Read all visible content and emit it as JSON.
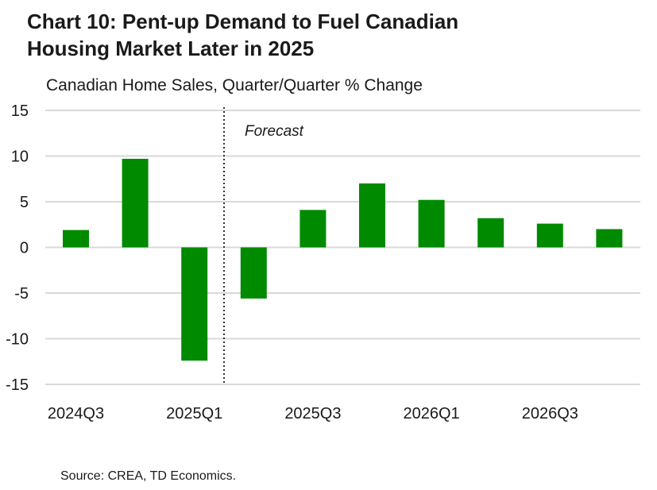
{
  "title_line1": "Chart 10: Pent-up Demand to Fuel Canadian",
  "title_line2": "Housing Market Later in 2025",
  "subtitle": "Canadian Home Sales, Quarter/Quarter % Change",
  "source": "Source: CREA, TD Economics.",
  "colors": {
    "bar": "#008a00",
    "grid": "#d9d9d9",
    "divider": "#333333"
  },
  "chart_data": {
    "type": "bar",
    "categories": [
      "2024Q3",
      "2024Q4",
      "2025Q1",
      "2025Q2",
      "2025Q3",
      "2025Q4",
      "2026Q1",
      "2026Q2",
      "2026Q3",
      "2026Q4"
    ],
    "x_tick_labels": [
      "2024Q3",
      "",
      "2025Q1",
      "",
      "2025Q3",
      "",
      "2026Q1",
      "",
      "2026Q3",
      ""
    ],
    "values": [
      1.9,
      9.7,
      -12.4,
      -5.6,
      4.1,
      7.0,
      5.2,
      3.2,
      2.6,
      2.0
    ],
    "ylim": [
      -15,
      15
    ],
    "yticks": [
      15,
      10,
      5,
      0,
      -5,
      -10,
      -15
    ],
    "ytick_labels": [
      "15",
      "10",
      "5",
      "0",
      "-5",
      "-10",
      "-15"
    ],
    "grid": true,
    "forecast_start_after": "2025Q1",
    "forecast_label": "Forecast",
    "xlabel": "",
    "ylabel": ""
  }
}
